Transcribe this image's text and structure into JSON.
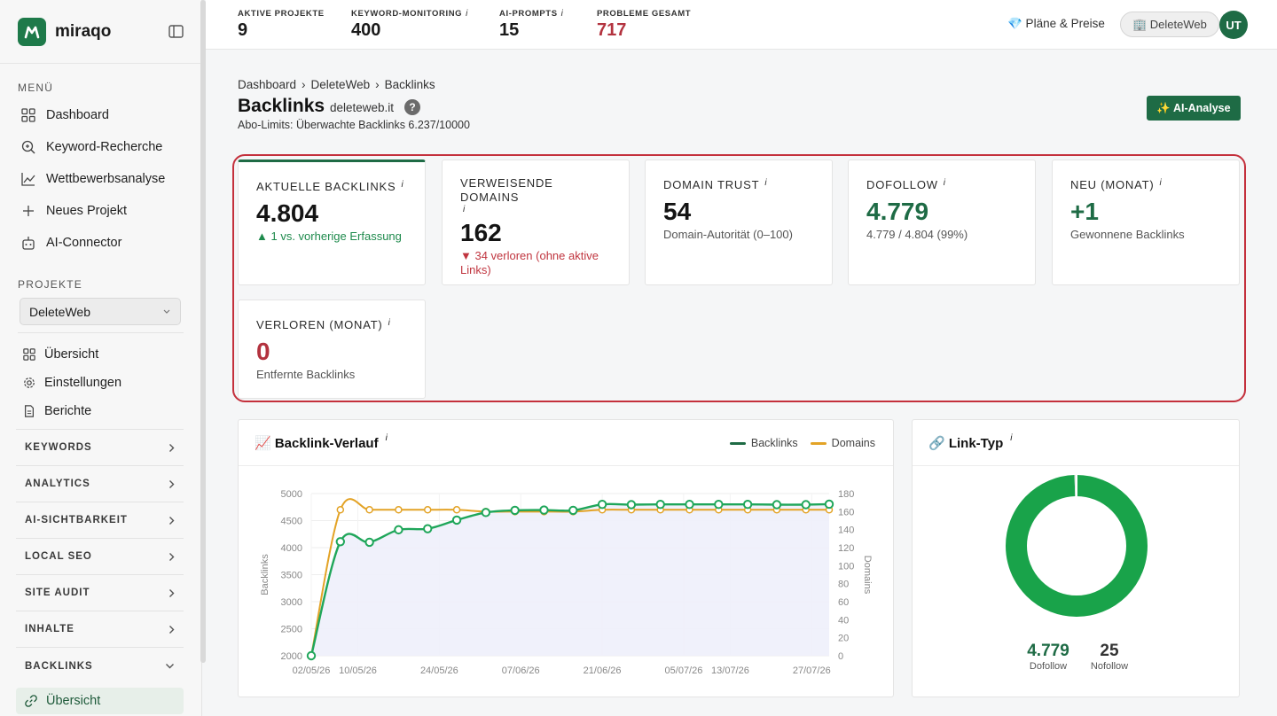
{
  "brand": {
    "name": "miraqo"
  },
  "sidebar": {
    "menu_label": "MENÜ",
    "menu": [
      {
        "label": "Dashboard",
        "icon": "grid-icon"
      },
      {
        "label": "Keyword-Recherche",
        "icon": "search-icon"
      },
      {
        "label": "Wettbewerbsanalyse",
        "icon": "chart-icon"
      },
      {
        "label": "Neues Projekt",
        "icon": "plus-icon"
      },
      {
        "label": "AI-Connector",
        "icon": "robot-icon"
      }
    ],
    "projects_label": "PROJEKTE",
    "project_selected": "DeleteWeb",
    "project_items": [
      {
        "label": "Übersicht"
      },
      {
        "label": "Einstellungen"
      },
      {
        "label": "Berichte"
      }
    ],
    "groups": [
      "KEYWORDS",
      "ANALYTICS",
      "AI-SICHTBARKEIT",
      "LOCAL SEO",
      "SITE AUDIT",
      "INHALTE",
      "BACKLINKS"
    ],
    "active_sub": "Übersicht"
  },
  "topbar": {
    "stats": [
      {
        "label": "AKTIVE PROJEKTE",
        "value": "9",
        "info": ""
      },
      {
        "label": "KEYWORD-MONITORING",
        "value": "400",
        "info": "i"
      },
      {
        "label": "AI-PROMPTS",
        "value": "15",
        "info": "i"
      },
      {
        "label": "PROBLEME GESAMT",
        "value": "717",
        "info": ""
      }
    ],
    "plans": "💎 Pläne & Preise",
    "project_pill": "🏢 DeleteWeb",
    "avatar": "UT"
  },
  "page": {
    "breadcrumb": [
      "Dashboard",
      "DeleteWeb",
      "Backlinks"
    ],
    "breadcrumb_sep": "›",
    "title": "Backlinks",
    "domain": "deleteweb.it",
    "help": "?",
    "limits": "Abo-Limits: Überwachte Backlinks 6.237/10000",
    "ai_button": "✨ AI-Analyse"
  },
  "cards": [
    {
      "label": "AKTUELLE BACKLINKS",
      "value": "4.804",
      "sub": "▲ 1 vs. vorherige Erfassung"
    },
    {
      "label": "VERWEISENDE DOMAINS",
      "value": "162",
      "sub": "▼ 34 verloren (ohne aktive Links)"
    },
    {
      "label": "DOMAIN TRUST",
      "value": "54",
      "sub": "Domain-Autorität (0–100)"
    },
    {
      "label": "DOFOLLOW",
      "value": "4.779",
      "sub": "4.779 / 4.804 (99%)"
    },
    {
      "label": "NEU (MONAT)",
      "value": "+1",
      "sub": "Gewonnene Backlinks"
    },
    {
      "label": "VERLOREN (MONAT)",
      "value": "0",
      "sub": "Entfernte Backlinks"
    }
  ],
  "info_mark": "i",
  "backlink_chart": {
    "header": "📈 Backlink-Verlauf",
    "legend": {
      "backlinks": "Backlinks",
      "domains": "Domains"
    },
    "colors": {
      "backlinks": "#1fa65a",
      "domains": "#e3a326"
    }
  },
  "linktype": {
    "header": "🔗 Link-Typ",
    "dofollow_value": "4.779",
    "dofollow_label": "Dofollow",
    "nofollow_value": "25",
    "nofollow_label": "Nofollow"
  },
  "chart_data": [
    {
      "type": "line",
      "title": "Backlink-Verlauf",
      "ylabel": "Backlinks",
      "y2label": "Domains",
      "ylim": [
        2000,
        5000
      ],
      "y2lim": [
        0,
        180
      ],
      "y_ticks": [
        "5000",
        "4500",
        "4000",
        "3500",
        "3000",
        "2500",
        "2000"
      ],
      "y2_ticks": [
        "180",
        "160",
        "140",
        "120",
        "100",
        "80",
        "60",
        "40",
        "20",
        "0"
      ],
      "x_ticks": [
        "02/05/26",
        "10/05/26",
        "24/05/26",
        "07/06/26",
        "21/06/26",
        "05/07/26",
        "13/07/26",
        "27/07/26"
      ],
      "x_range": [
        "2026-05-02",
        "2026-07-30"
      ],
      "grid": true,
      "legend": "top-right",
      "series": [
        {
          "name": "Backlinks",
          "axis": "left",
          "x": [
            "2026-05-02",
            "2026-05-07",
            "2026-05-12",
            "2026-05-17",
            "2026-05-22",
            "2026-05-27",
            "2026-06-01",
            "2026-06-06",
            "2026-06-11",
            "2026-06-16",
            "2026-06-21",
            "2026-06-26",
            "2026-07-01",
            "2026-07-06",
            "2026-07-11",
            "2026-07-16",
            "2026-07-21",
            "2026-07-26",
            "2026-07-30"
          ],
          "values": [
            2000,
            4110,
            4100,
            4330,
            4350,
            4510,
            4650,
            4690,
            4695,
            4690,
            4800,
            4795,
            4800,
            4800,
            4800,
            4800,
            4795,
            4795,
            4804
          ]
        },
        {
          "name": "Domains",
          "axis": "right",
          "x": [
            "2026-05-02",
            "2026-05-07",
            "2026-05-12",
            "2026-05-17",
            "2026-05-22",
            "2026-05-27",
            "2026-06-01",
            "2026-06-06",
            "2026-06-11",
            "2026-06-16",
            "2026-06-21",
            "2026-06-26",
            "2026-07-01",
            "2026-07-06",
            "2026-07-11",
            "2026-07-16",
            "2026-07-21",
            "2026-07-26",
            "2026-07-30"
          ],
          "values": [
            0,
            162,
            162,
            162,
            162,
            162,
            160,
            160,
            160,
            160,
            162,
            162,
            162,
            162,
            162,
            162,
            162,
            162,
            162
          ]
        }
      ]
    },
    {
      "type": "pie",
      "title": "Link-Typ",
      "categories": [
        "Dofollow",
        "Nofollow"
      ],
      "values": [
        4779,
        25
      ],
      "colors": [
        "#19a34a",
        "#e8e8e8"
      ],
      "donut": true
    }
  ]
}
